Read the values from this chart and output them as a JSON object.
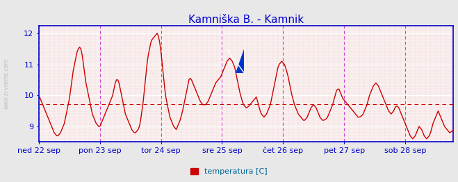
{
  "title": "Kamniška B. - Kamnik",
  "title_color": "#0000cc",
  "title_fontsize": 11,
  "legend_label": "temperatura [C]",
  "legend_color": "#cc0000",
  "fig_bg_color": "#e8e8e8",
  "plot_bg_color": "#f8f0f0",
  "line_color": "#cc0000",
  "line_width": 1.0,
  "ylim": [
    8.5,
    12.25
  ],
  "yticks": [
    9,
    10,
    11,
    12
  ],
  "avg_line_y": 9.72,
  "avg_line_color": "#cc0000",
  "watermark": "www.si-vreme.com",
  "watermark_color": "#bbbbcc",
  "day_line_color": "#cc44cc",
  "tick_label_color": "#0000bb",
  "day_labels": [
    "ned 22 sep",
    "pon 23 sep",
    "tor 24 sep",
    "sre 25 sep",
    "čet 26 sep",
    "pet 27 sep",
    "sob 28 sep"
  ],
  "day_positions": [
    0.0,
    48.0,
    96.0,
    144.0,
    192.0,
    240.0,
    288.0
  ],
  "n_points": 336,
  "data_values": [
    10.0,
    9.9,
    9.8,
    9.7,
    9.6,
    9.5,
    9.4,
    9.3,
    9.2,
    9.1,
    9.0,
    8.9,
    8.8,
    8.75,
    8.7,
    8.7,
    8.75,
    8.8,
    8.9,
    9.0,
    9.1,
    9.3,
    9.5,
    9.7,
    9.9,
    10.2,
    10.5,
    10.8,
    11.0,
    11.2,
    11.4,
    11.5,
    11.55,
    11.5,
    11.3,
    11.0,
    10.7,
    10.4,
    10.2,
    10.0,
    9.8,
    9.6,
    9.4,
    9.3,
    9.2,
    9.1,
    9.05,
    9.0,
    9.0,
    9.1,
    9.2,
    9.3,
    9.4,
    9.5,
    9.6,
    9.7,
    9.8,
    9.9,
    10.0,
    10.2,
    10.4,
    10.5,
    10.5,
    10.4,
    10.2,
    10.0,
    9.8,
    9.6,
    9.4,
    9.3,
    9.2,
    9.1,
    9.0,
    8.9,
    8.85,
    8.8,
    8.8,
    8.85,
    8.9,
    9.0,
    9.2,
    9.5,
    9.8,
    10.2,
    10.6,
    11.0,
    11.3,
    11.5,
    11.7,
    11.8,
    11.85,
    11.9,
    11.95,
    12.0,
    11.9,
    11.7,
    11.4,
    11.0,
    10.6,
    10.2,
    9.9,
    9.7,
    9.5,
    9.3,
    9.2,
    9.1,
    9.0,
    8.95,
    8.9,
    9.0,
    9.1,
    9.2,
    9.35,
    9.5,
    9.7,
    9.9,
    10.1,
    10.3,
    10.5,
    10.55,
    10.5,
    10.4,
    10.3,
    10.2,
    10.1,
    10.0,
    9.9,
    9.8,
    9.75,
    9.7,
    9.7,
    9.7,
    9.75,
    9.8,
    9.9,
    10.0,
    10.1,
    10.2,
    10.3,
    10.4,
    10.45,
    10.5,
    10.55,
    10.6,
    10.7,
    10.8,
    10.9,
    11.0,
    11.1,
    11.15,
    11.2,
    11.15,
    11.1,
    11.0,
    10.9,
    10.7,
    10.5,
    10.3,
    10.1,
    9.95,
    9.8,
    9.7,
    9.65,
    9.6,
    9.62,
    9.65,
    9.7,
    9.75,
    9.8,
    9.85,
    9.9,
    9.95,
    9.8,
    9.65,
    9.5,
    9.4,
    9.35,
    9.3,
    9.35,
    9.4,
    9.5,
    9.6,
    9.7,
    9.9,
    10.1,
    10.3,
    10.5,
    10.7,
    10.9,
    11.0,
    11.05,
    11.1,
    11.05,
    11.0,
    10.9,
    10.75,
    10.6,
    10.4,
    10.2,
    10.0,
    9.85,
    9.7,
    9.6,
    9.5,
    9.4,
    9.35,
    9.3,
    9.25,
    9.2,
    9.2,
    9.25,
    9.3,
    9.4,
    9.5,
    9.6,
    9.65,
    9.7,
    9.65,
    9.6,
    9.5,
    9.4,
    9.3,
    9.25,
    9.2,
    9.2,
    9.22,
    9.25,
    9.3,
    9.4,
    9.5,
    9.6,
    9.7,
    9.85,
    10.0,
    10.15,
    10.2,
    10.2,
    10.1,
    10.0,
    9.9,
    9.85,
    9.8,
    9.75,
    9.7,
    9.65,
    9.6,
    9.55,
    9.5,
    9.45,
    9.4,
    9.35,
    9.3,
    9.3,
    9.32,
    9.35,
    9.4,
    9.5,
    9.6,
    9.7,
    9.85,
    10.0,
    10.1,
    10.2,
    10.3,
    10.35,
    10.4,
    10.35,
    10.3,
    10.2,
    10.1,
    10.0,
    9.9,
    9.8,
    9.7,
    9.6,
    9.5,
    9.45,
    9.4,
    9.45,
    9.5,
    9.6,
    9.65,
    9.65,
    9.6,
    9.5,
    9.4,
    9.3,
    9.2,
    9.1,
    9.0,
    8.9,
    8.8,
    8.7,
    8.65,
    8.6,
    8.65,
    8.7,
    8.8,
    8.9,
    9.0,
    8.95,
    8.9,
    8.8,
    8.7,
    8.65,
    8.6,
    8.65,
    8.7,
    8.8,
    8.95,
    9.1,
    9.2,
    9.3,
    9.4,
    9.5,
    9.4,
    9.3,
    9.2,
    9.1,
    9.0,
    8.95,
    8.9,
    8.85,
    8.8,
    8.82,
    8.85,
    8.9
  ]
}
